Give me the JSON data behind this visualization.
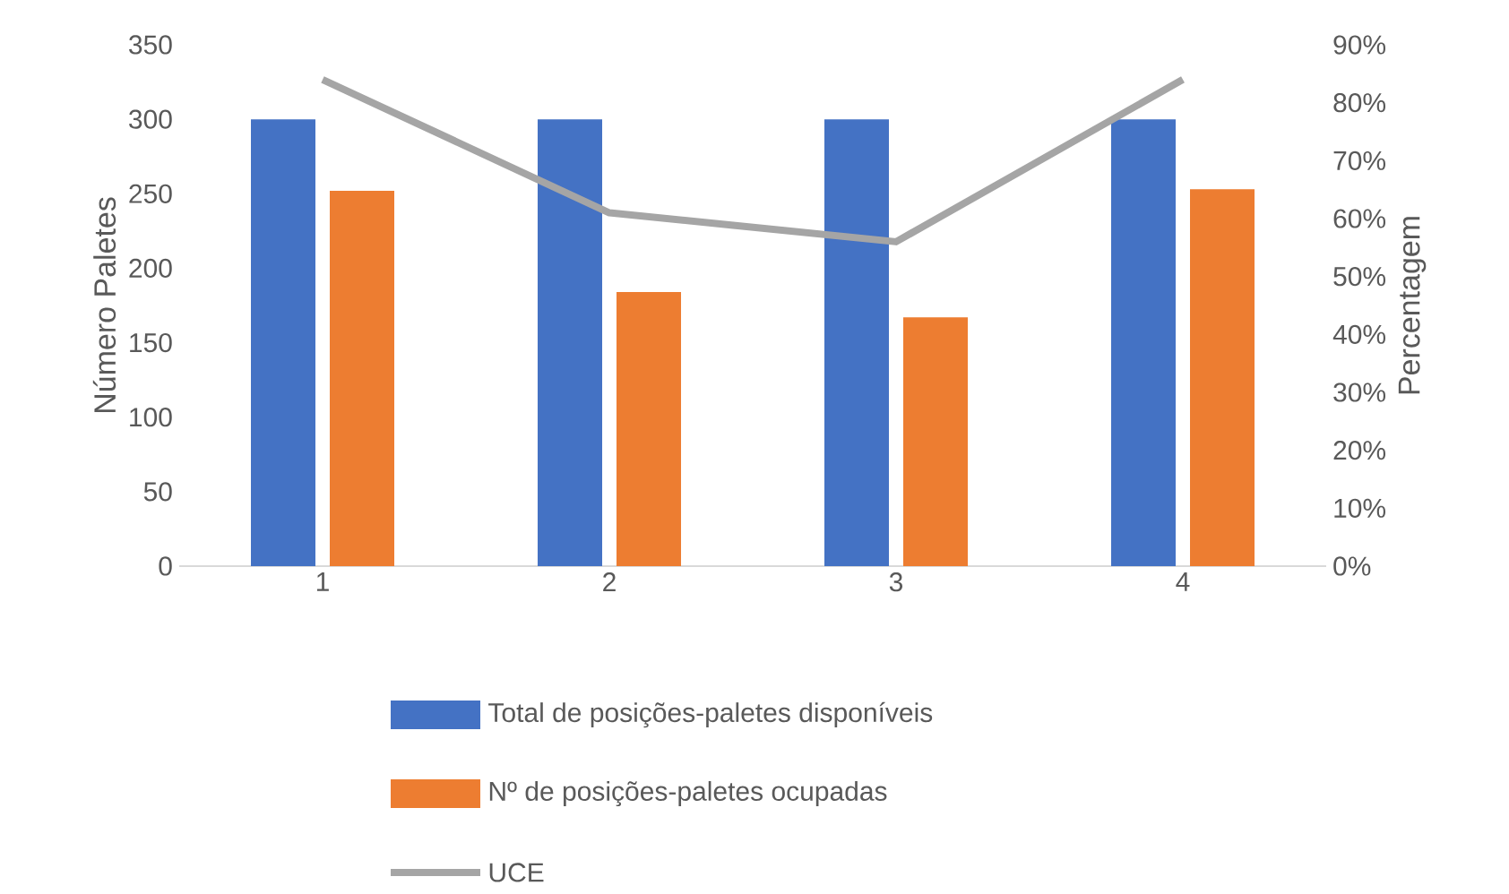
{
  "chart_data": {
    "type": "bar",
    "categories": [
      "1",
      "2",
      "3",
      "4"
    ],
    "series": [
      {
        "name": "Total de posições-paletes disponíveis",
        "color": "#4472c4",
        "values": [
          300,
          300,
          300,
          300
        ]
      },
      {
        "name": "Nº de posições-paletes ocupadas",
        "color": "#ed7d31",
        "values": [
          252,
          184,
          167,
          253
        ]
      },
      {
        "name": "UCE",
        "type": "line",
        "axis": "y2",
        "color": "#a5a5a5",
        "values": [
          84,
          61,
          56,
          84
        ]
      }
    ],
    "ylabel": "Número Paletes",
    "y2label": "Percentagem",
    "ylim": [
      0,
      350
    ],
    "yticks": [
      0,
      50,
      100,
      150,
      200,
      250,
      300,
      350
    ],
    "y2lim": [
      0,
      90
    ],
    "y2ticks": [
      {
        "value": 0,
        "label": "0%"
      },
      {
        "value": 10,
        "label": "10%"
      },
      {
        "value": 20,
        "label": "20%"
      },
      {
        "value": 30,
        "label": "30%"
      },
      {
        "value": 40,
        "label": "40%"
      },
      {
        "value": 50,
        "label": "50%"
      },
      {
        "value": 60,
        "label": "60%"
      },
      {
        "value": 70,
        "label": "70%"
      },
      {
        "value": 80,
        "label": "80%"
      },
      {
        "value": 90,
        "label": "90%"
      }
    ],
    "legend": "bottom"
  }
}
